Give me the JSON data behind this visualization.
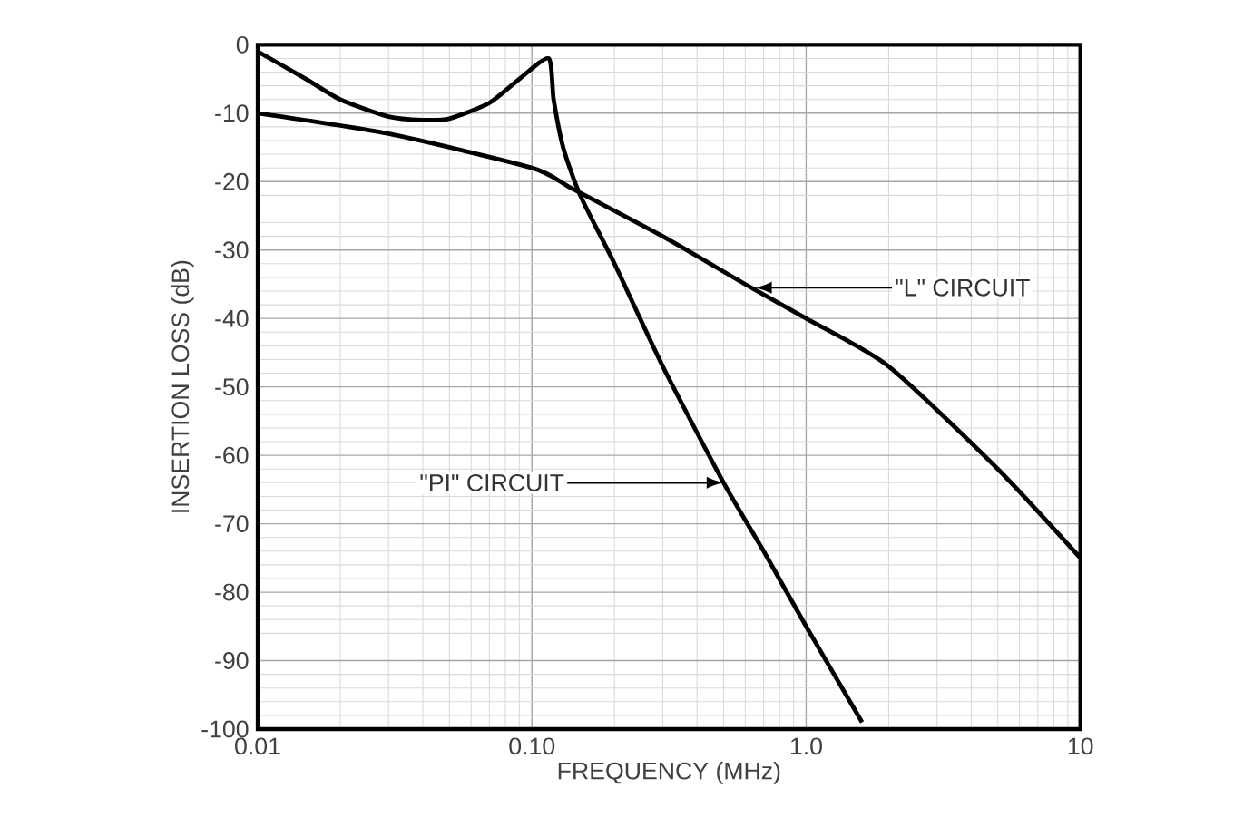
{
  "chart_data": {
    "type": "line",
    "xlabel": "FREQUENCY (MHz)",
    "ylabel": "INSERTION LOSS (dB)",
    "log": "x",
    "grid": true,
    "xlim": [
      0.01,
      10
    ],
    "xticks": [
      {
        "value": 0.01,
        "label": "0.01"
      },
      {
        "value": 0.1,
        "label": "0.10"
      },
      {
        "value": 1,
        "label": "1.0"
      },
      {
        "value": 10,
        "label": "10"
      }
    ],
    "ylim": [
      -100,
      0
    ],
    "yticks": [
      -100,
      -90,
      -80,
      -70,
      -60,
      -50,
      -40,
      -30,
      -20,
      -10,
      0
    ],
    "series": [
      {
        "color": "#000000",
        "x": [
          0.01,
          0.015,
          0.02,
          0.03,
          0.04,
          0.05,
          0.07,
          0.09,
          0.115,
          0.12,
          0.13,
          0.15,
          0.2,
          0.3,
          0.5,
          0.7,
          1.0,
          1.6
        ],
        "values": [
          -1,
          -5,
          -8,
          -10.5,
          -11,
          -10.8,
          -8.5,
          -5,
          -2,
          -8,
          -15,
          -22,
          -32,
          -47,
          -64,
          -74,
          -85,
          -99
        ]
      },
      {
        "color": "#000000",
        "x": [
          0.01,
          0.03,
          0.1,
          0.14,
          0.3,
          0.6,
          1.0,
          2,
          5,
          10
        ],
        "values": [
          -10,
          -13,
          -18,
          -21,
          -28,
          -35,
          -40,
          -47,
          -62,
          -75
        ]
      }
    ],
    "annotations": [
      {
        "text": "\"L\" CIRCUIT",
        "x": 0.65,
        "y": -35.5
      },
      {
        "text": "\"PI\" CIRCUIT",
        "x": 0.5,
        "y": -64
      }
    ]
  }
}
